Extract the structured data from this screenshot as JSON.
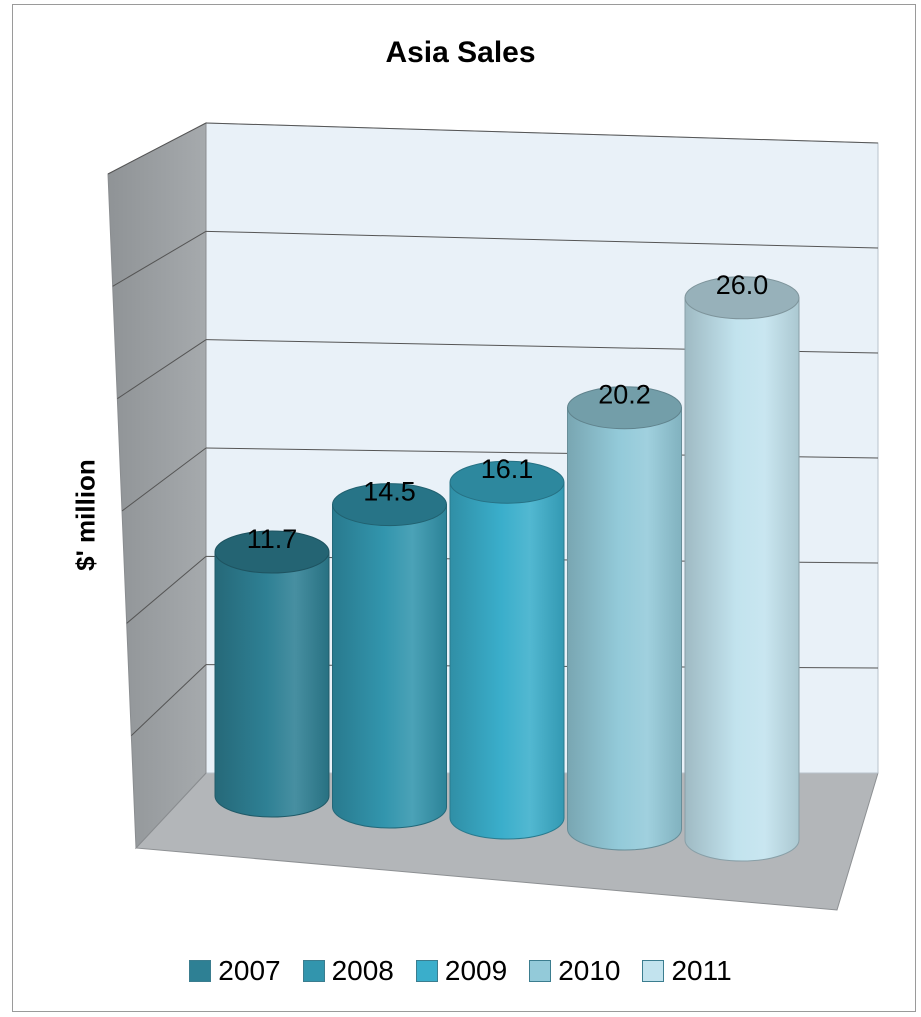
{
  "chart_data": {
    "type": "bar",
    "title": "Asia Sales",
    "ylabel": "$' million",
    "xlabel": "",
    "ylim": [
      0,
      30
    ],
    "grid": true,
    "legend_position": "bottom",
    "series": [
      {
        "name": "2007",
        "value": 11.7,
        "color": "#2e8094"
      },
      {
        "name": "2008",
        "value": 14.5,
        "color": "#3295ad"
      },
      {
        "name": "2009",
        "value": 16.1,
        "color": "#3aaecb"
      },
      {
        "name": "2010",
        "value": 20.2,
        "color": "#93cad9"
      },
      {
        "name": "2011",
        "value": 26.0,
        "color": "#c2e3ee"
      }
    ],
    "data_labels": [
      "11.7",
      "14.5",
      "16.1",
      "20.2",
      "26.0"
    ]
  },
  "colors": {
    "back_wall": "#e9f1f8",
    "side_wall": "#a6aaad",
    "floor": "#b3b6b9",
    "gridline": "#555555",
    "frame_border": "#9a9a9a"
  }
}
